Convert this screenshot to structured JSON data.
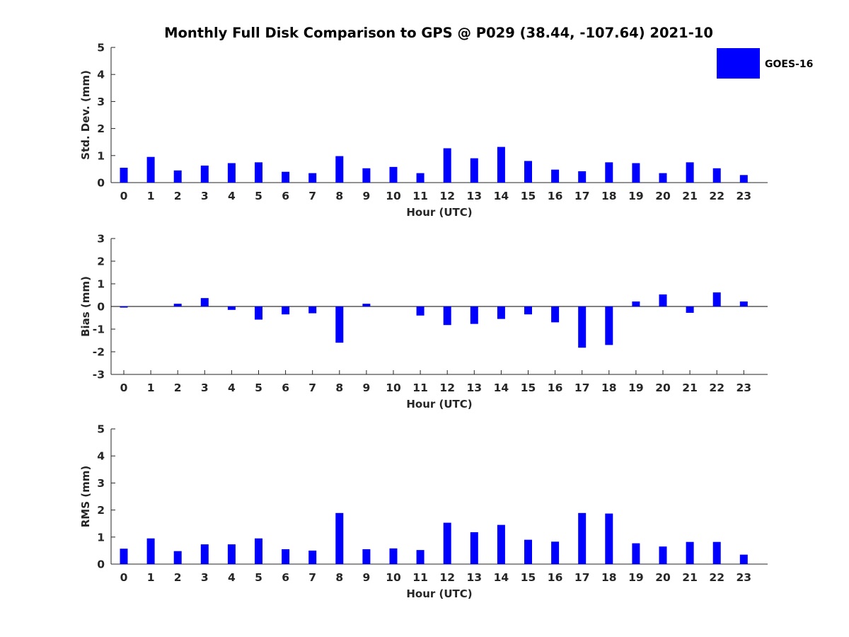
{
  "chart_data": {
    "type": "bar",
    "title": "Monthly Full Disk Comparison to GPS @ P029 (38.44, -107.64) 2021-10",
    "categories": [
      "0",
      "1",
      "2",
      "3",
      "4",
      "5",
      "6",
      "7",
      "8",
      "9",
      "10",
      "11",
      "12",
      "13",
      "14",
      "15",
      "16",
      "17",
      "18",
      "19",
      "20",
      "21",
      "22",
      "23"
    ],
    "legend": {
      "entries": [
        "GOES-16"
      ],
      "placement": "top-right"
    },
    "colors": {
      "series": "#0000ff",
      "axis": "#262626"
    },
    "grid": false,
    "panels": [
      {
        "xlabel": "Hour (UTC)",
        "ylabel": "Std. Dev. (mm)",
        "ylim": [
          0,
          5
        ],
        "yticks": [
          "0",
          "1",
          "2",
          "3",
          "4",
          "5"
        ],
        "zero_line": false,
        "series": [
          {
            "name": "GOES-16",
            "values": [
              0.55,
              0.95,
              0.45,
              0.63,
              0.72,
              0.75,
              0.4,
              0.35,
              0.98,
              0.53,
              0.58,
              0.35,
              1.27,
              0.9,
              1.32,
              0.8,
              0.48,
              0.42,
              0.75,
              0.72,
              0.35,
              0.75,
              0.53,
              0.28
            ]
          }
        ]
      },
      {
        "xlabel": "Hour (UTC)",
        "ylabel": "Bias (mm)",
        "ylim": [
          -3,
          3
        ],
        "yticks": [
          "-3",
          "-2",
          "-1",
          "0",
          "1",
          "2",
          "3"
        ],
        "zero_line": true,
        "series": [
          {
            "name": "GOES-16",
            "values": [
              -0.05,
              0.0,
              0.12,
              0.37,
              -0.15,
              -0.58,
              -0.35,
              -0.3,
              -1.6,
              0.12,
              0.0,
              -0.4,
              -0.82,
              -0.77,
              -0.55,
              -0.35,
              -0.7,
              -1.82,
              -1.7,
              0.22,
              0.53,
              -0.28,
              0.62,
              0.22
            ]
          }
        ]
      },
      {
        "xlabel": "Hour (UTC)",
        "ylabel": "RMS (mm)",
        "ylim": [
          0,
          5
        ],
        "yticks": [
          "0",
          "1",
          "2",
          "3",
          "4",
          "5"
        ],
        "zero_line": false,
        "series": [
          {
            "name": "GOES-16",
            "values": [
              0.57,
              0.95,
              0.48,
              0.73,
              0.73,
              0.95,
              0.55,
              0.5,
              1.89,
              0.55,
              0.58,
              0.52,
              1.53,
              1.18,
              1.45,
              0.9,
              0.83,
              1.89,
              1.87,
              0.77,
              0.65,
              0.82,
              0.82,
              0.35
            ]
          }
        ]
      }
    ]
  }
}
